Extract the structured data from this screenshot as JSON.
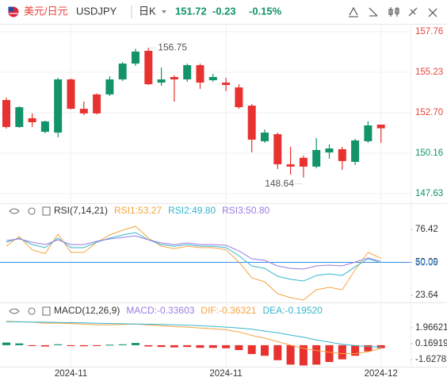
{
  "header": {
    "pair": "美元/日元",
    "symbol": "USDJPY",
    "period": "日K",
    "price": "151.72",
    "change": "-0.23",
    "change_pct": "-0.15%"
  },
  "chart_data": [
    {
      "type": "candlestick",
      "up_color": "#12936a",
      "down_color": "#e8322f",
      "above_color": "#e8453c",
      "below_color": "#12936a",
      "open": [
        153.49,
        151.8,
        152.35,
        151.5,
        151.45,
        154.78,
        152.94,
        153.84,
        153.84,
        154.78,
        155.77,
        156.57,
        154.58,
        154.93,
        154.78,
        155.67,
        154.73,
        154.58,
        154.28,
        153.14,
        150.91,
        151.35,
        149.47,
        149.87,
        149.32,
        150.21,
        150.41,
        149.62,
        150.91,
        151.95
      ],
      "high": [
        153.64,
        153.1,
        152.65,
        152.2,
        154.88,
        154.83,
        153.39,
        153.9,
        154.98,
        155.87,
        156.7,
        156.75,
        155.52,
        155.03,
        155.77,
        155.77,
        155.13,
        154.88,
        154.48,
        153.24,
        151.65,
        151.45,
        150.56,
        150.01,
        151.11,
        150.71,
        150.56,
        151.06,
        152.15,
        151.95
      ],
      "low": [
        151.7,
        151.75,
        151.8,
        151.4,
        151.16,
        152.9,
        152.55,
        152.6,
        153.74,
        154.68,
        155.63,
        154.43,
        154.38,
        153.39,
        154.63,
        154.19,
        154.63,
        154.04,
        152.94,
        150.21,
        150.81,
        149.17,
        148.82,
        148.64,
        149.22,
        149.82,
        149.12,
        149.42,
        150.81,
        150.81
      ],
      "close": [
        151.8,
        153.04,
        152.1,
        152.15,
        154.78,
        152.94,
        152.65,
        152.65,
        154.78,
        155.77,
        156.52,
        154.48,
        154.78,
        154.78,
        155.67,
        154.58,
        154.93,
        154.43,
        153.04,
        151.01,
        151.45,
        149.47,
        149.32,
        149.32,
        150.36,
        150.46,
        149.67,
        150.96,
        151.9,
        151.72
      ],
      "high_label": 156.75,
      "low_label": 148.64,
      "ylim": [
        147.23,
        158.16
      ],
      "yticks": [
        157.76,
        155.23,
        {
          "value": 152.7,
          "label": "152.70"
        },
        150.16,
        147.63
      ],
      "xticks": [
        {
          "value": 5,
          "label": "2024-11"
        },
        {
          "value": 17,
          "label": "2024-11"
        },
        {
          "value": 29,
          "label": "2024-12"
        }
      ],
      "grid": true
    },
    {
      "type": "line",
      "title": "RSI(7,14,21)",
      "series": [
        {
          "name": "RSI1:53.27",
          "color": "#f5a441",
          "values": [
            63,
            70.7,
            60,
            57,
            72.6,
            58,
            58,
            66,
            72,
            75.8,
            78.9,
            69.4,
            63,
            61,
            63,
            61.8,
            61.8,
            60,
            50.3,
            37.6,
            34.4,
            24.9,
            21.7,
            19.8,
            28.1,
            30,
            28.1,
            44,
            58,
            53.27
          ]
        },
        {
          "name": "RSI2:49.80",
          "color": "#36b5cf",
          "values": [
            66.2,
            69.4,
            64.3,
            61.8,
            69.4,
            61.8,
            61.8,
            66.2,
            69.4,
            72,
            73.9,
            68.1,
            64.3,
            63,
            64.3,
            63,
            63,
            61.8,
            55.4,
            47.2,
            45.2,
            38.9,
            36.4,
            35.1,
            39.5,
            40.8,
            39.5,
            46.5,
            52.9,
            49.8
          ]
        },
        {
          "name": "RSI3:50.80",
          "color": "#9a7be0",
          "values": [
            67.5,
            68.8,
            66.2,
            64.3,
            68.1,
            64.3,
            64.3,
            66.9,
            68.8,
            70,
            71.3,
            68.1,
            65.6,
            64.3,
            65.6,
            64.3,
            64.3,
            63.7,
            59.2,
            52.9,
            51.6,
            47.2,
            45.2,
            44.6,
            47.2,
            47.8,
            47.2,
            50.3,
            53.5,
            50.8
          ]
        }
      ],
      "reference_line": {
        "value": 50,
        "label": "50.00",
        "color": "#3a8ee6"
      },
      "ylim": [
        18.55,
        84.69
      ],
      "yticks": [
        76.42,
        50.09,
        23.64
      ]
    },
    {
      "type": "macd",
      "title": "MACD(12,26,9)",
      "histogram": {
        "name": "MACD:-0.33603",
        "color": "#9a7be0",
        "up_color": "#12936a",
        "down_color": "#e8322f",
        "values": [
          0.3,
          0.2,
          -0.1,
          -0.15,
          0.1,
          -0.1,
          -0.12,
          -0.1,
          0.05,
          0.1,
          0.25,
          -0.15,
          -0.2,
          -0.25,
          -0.2,
          -0.3,
          -0.3,
          -0.35,
          -0.55,
          -1.0,
          -1.2,
          -1.7,
          -2.2,
          -2.3,
          -2.2,
          -1.9,
          -1.6,
          -1.2,
          -0.7,
          -0.33603
        ]
      },
      "series": [
        {
          "name": "DIF:-0.36321",
          "color": "#f5a441",
          "values": [
            2.7,
            2.65,
            2.6,
            2.5,
            2.5,
            2.45,
            2.4,
            2.3,
            2.3,
            2.35,
            2.4,
            2.3,
            2.2,
            2.1,
            2.05,
            1.95,
            1.85,
            1.75,
            1.5,
            1.1,
            0.8,
            0.4,
            0.0,
            -0.35,
            -0.6,
            -0.8,
            -0.95,
            -0.95,
            -0.75,
            -0.36321
          ]
        },
        {
          "name": "DEA:-0.19520",
          "color": "#36b5cf",
          "values": [
            2.65,
            2.64,
            2.62,
            2.6,
            2.58,
            2.55,
            2.52,
            2.48,
            2.45,
            2.42,
            2.4,
            2.38,
            2.35,
            2.3,
            2.25,
            2.2,
            2.12,
            2.05,
            1.95,
            1.8,
            1.6,
            1.4,
            1.15,
            0.9,
            0.6,
            0.35,
            0.1,
            -0.05,
            -0.15,
            -0.1952
          ]
        }
      ],
      "ylim": [
        -2.436,
        3.134
      ],
      "yticks": [
        1.96621,
        0.16919,
        -1.62783
      ]
    }
  ]
}
